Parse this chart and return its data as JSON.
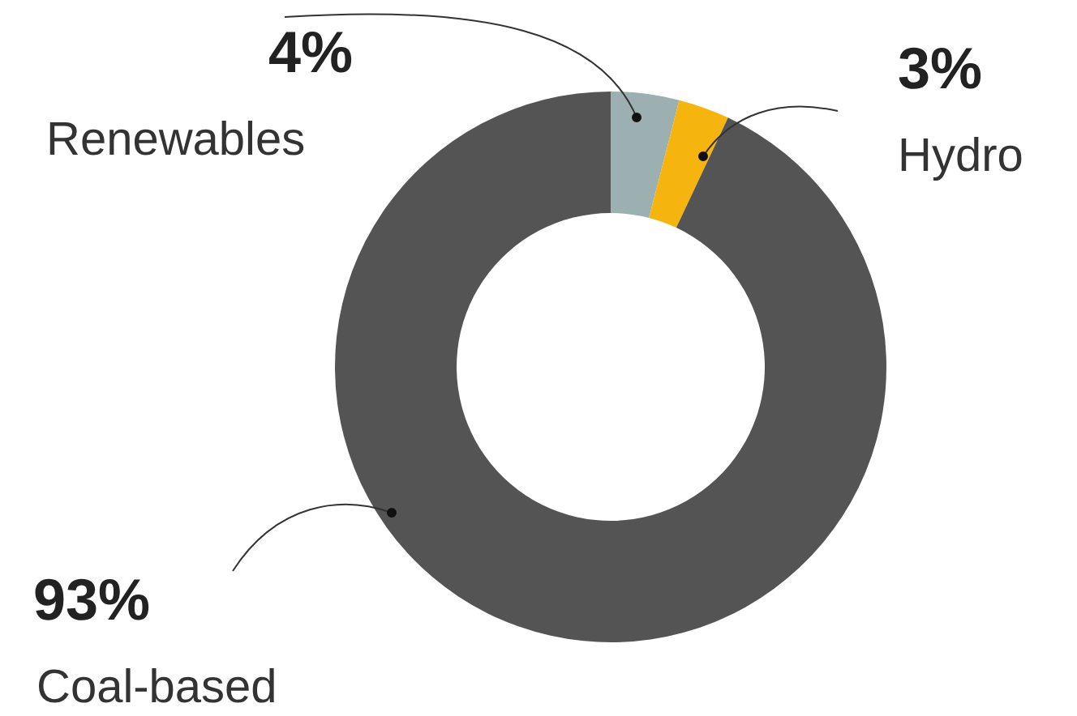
{
  "chart_data": {
    "type": "donut",
    "categories": [
      "Renewables",
      "Hydro",
      "Coal-based"
    ],
    "values": [
      4,
      3,
      93
    ],
    "colors": [
      "#9cb0b1",
      "#f6b40e",
      "#545454"
    ],
    "value_labels": [
      "4%",
      "3%",
      "93%"
    ]
  }
}
